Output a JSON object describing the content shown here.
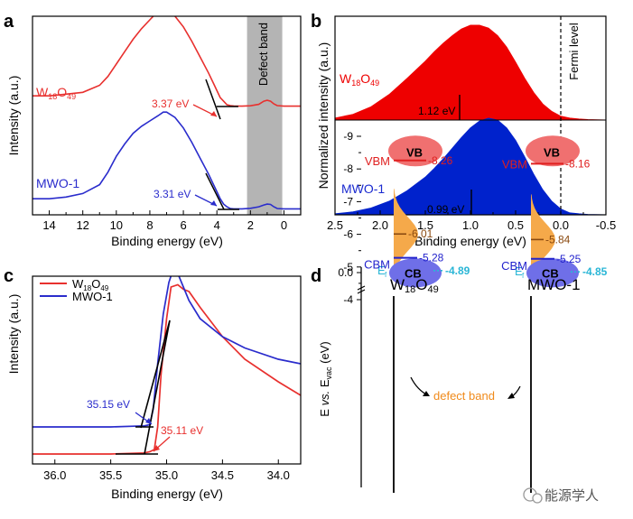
{
  "panels": {
    "a": {
      "letter": "a",
      "xlabel": "Binding energy (eV)",
      "ylabel": "Intensity (a.u.)",
      "xlim": [
        15,
        -1
      ],
      "xticks": [
        "14",
        "12",
        "10",
        "8",
        "6",
        "4",
        "2",
        "0"
      ],
      "defect_label": "Defect band",
      "defect_range": [
        2.2,
        0.1
      ],
      "series": [
        {
          "name": "W18O49",
          "label_main": "W",
          "label_sub1": "18",
          "label_mid": "O",
          "label_sub2": "49",
          "color": "#e8302e",
          "onset_label": "3.37 eV",
          "x": [
            15.0,
            14.0,
            13.0,
            12.0,
            11.0,
            10.5,
            10.0,
            9.5,
            9.0,
            8.5,
            8.0,
            7.5,
            7.2,
            7.0,
            6.5,
            6.0,
            5.5,
            5.0,
            4.5,
            4.2,
            4.0,
            3.8,
            3.6,
            3.4,
            3.2,
            3.0,
            2.5,
            2.0,
            1.5,
            1.2,
            1.0,
            0.8,
            0.6,
            0.4,
            0.0,
            -0.5,
            -1.0
          ],
          "y": [
            0.06,
            0.06,
            0.07,
            0.08,
            0.12,
            0.17,
            0.24,
            0.31,
            0.38,
            0.44,
            0.49,
            0.54,
            0.56,
            0.55,
            0.51,
            0.45,
            0.37,
            0.28,
            0.19,
            0.13,
            0.09,
            0.05,
            0.03,
            0.01,
            0.005,
            0.003,
            0.002,
            0.004,
            0.012,
            0.03,
            0.035,
            0.03,
            0.015,
            0.005,
            0.002,
            0.002,
            0.002
          ]
        },
        {
          "name": "MWO-1",
          "label_main": "MWO-1",
          "color": "#2a2ccc",
          "onset_label": "3.31 eV",
          "x": [
            15.0,
            14.0,
            13.0,
            12.0,
            11.0,
            10.5,
            10.0,
            9.5,
            9.0,
            8.5,
            8.0,
            7.5,
            7.2,
            7.0,
            6.5,
            6.0,
            5.5,
            5.0,
            4.5,
            4.2,
            4.0,
            3.8,
            3.6,
            3.4,
            3.2,
            3.0,
            2.5,
            2.0,
            1.5,
            1.2,
            1.0,
            0.8,
            0.6,
            0.4,
            0.0,
            -0.5,
            -1.0
          ],
          "y": [
            0.06,
            0.06,
            0.07,
            0.09,
            0.14,
            0.21,
            0.3,
            0.37,
            0.43,
            0.47,
            0.5,
            0.53,
            0.55,
            0.55,
            0.52,
            0.46,
            0.38,
            0.29,
            0.2,
            0.14,
            0.1,
            0.06,
            0.03,
            0.015,
            0.005,
            0.003,
            0.003,
            0.006,
            0.015,
            0.025,
            0.03,
            0.028,
            0.015,
            0.005,
            0.003,
            0.003,
            0.003
          ]
        }
      ]
    },
    "b": {
      "letter": "b",
      "xlabel": "Binding energy (eV)",
      "ylabel": "Normalized intensity (a.u.)",
      "xlim": [
        2.5,
        -0.5
      ],
      "xticks": [
        "2.5",
        "2.0",
        "1.5",
        "1.0",
        "0.5",
        "0.0",
        "-0.5"
      ],
      "fermi_label": "Fermi level",
      "series": [
        {
          "name": "W18O49",
          "label_main": "W",
          "label_sub1": "18",
          "label_mid": "O",
          "label_sub2": "49",
          "color": "#ee0000",
          "peak_label": "1.12 eV",
          "peak_x": 1.12,
          "x": [
            2.5,
            2.3,
            2.1,
            1.9,
            1.7,
            1.5,
            1.4,
            1.3,
            1.2,
            1.1,
            1.0,
            0.9,
            0.8,
            0.7,
            0.6,
            0.5,
            0.4,
            0.3,
            0.2,
            0.1,
            0.0,
            -0.1,
            -0.2,
            -0.3,
            -0.5
          ],
          "y": [
            0.02,
            0.06,
            0.14,
            0.27,
            0.44,
            0.62,
            0.72,
            0.81,
            0.89,
            0.96,
            1.0,
            1.0,
            0.97,
            0.89,
            0.77,
            0.61,
            0.44,
            0.29,
            0.17,
            0.09,
            0.04,
            0.02,
            0.01,
            0.005,
            0.0
          ]
        },
        {
          "name": "MWO-1",
          "label_main": "MWO-1",
          "color": "#0022cc",
          "peak_label": "0.99 eV",
          "peak_x": 0.99,
          "x": [
            2.5,
            2.3,
            2.1,
            1.9,
            1.7,
            1.5,
            1.4,
            1.3,
            1.2,
            1.1,
            1.0,
            0.9,
            0.8,
            0.7,
            0.6,
            0.5,
            0.4,
            0.3,
            0.2,
            0.1,
            0.0,
            -0.1,
            -0.2,
            -0.3,
            -0.5
          ],
          "y": [
            0.01,
            0.03,
            0.07,
            0.14,
            0.25,
            0.39,
            0.48,
            0.58,
            0.69,
            0.8,
            0.9,
            0.97,
            1.0,
            0.98,
            0.9,
            0.77,
            0.6,
            0.42,
            0.26,
            0.14,
            0.06,
            0.02,
            0.01,
            0.004,
            0.0
          ]
        }
      ]
    },
    "c": {
      "letter": "c",
      "xlabel": "Binding energy (eV)",
      "ylabel": "Intensity (a.u.)",
      "xlim": [
        36.2,
        33.8
      ],
      "xticks": [
        "36.0",
        "35.5",
        "35.0",
        "34.5",
        "34.0"
      ],
      "legend": [
        {
          "label_main": "W",
          "label_sub1": "18",
          "label_mid": "O",
          "label_sub2": "49",
          "color": "#e8302e"
        },
        {
          "label_main": "MWO-1",
          "color": "#2a2ccc"
        }
      ],
      "series": [
        {
          "name": "W18O49",
          "color": "#e8302e",
          "onset_label": "35.11 eV",
          "x": [
            36.2,
            35.5,
            35.2,
            35.15,
            35.11,
            35.08,
            35.05,
            35.0,
            34.96,
            34.9,
            34.85,
            34.8,
            34.7,
            34.5,
            34.3,
            34.0,
            33.8
          ],
          "y": [
            0.0,
            0.0,
            0.005,
            0.01,
            0.02,
            0.12,
            0.35,
            0.6,
            0.74,
            0.75,
            0.73,
            0.72,
            0.65,
            0.52,
            0.42,
            0.32,
            0.26
          ]
        },
        {
          "name": "MWO-1",
          "color": "#2a2ccc",
          "onset_label": "35.15 eV",
          "x": [
            36.2,
            35.5,
            35.2,
            35.15,
            35.12,
            35.08,
            35.03,
            34.98,
            34.94,
            34.9,
            34.85,
            34.8,
            34.7,
            34.5,
            34.3,
            34.0,
            33.8
          ],
          "y": [
            0.12,
            0.12,
            0.125,
            0.13,
            0.2,
            0.4,
            0.62,
            0.76,
            0.82,
            0.8,
            0.74,
            0.68,
            0.6,
            0.52,
            0.47,
            0.42,
            0.4
          ]
        }
      ]
    },
    "d": {
      "letter": "d",
      "ylabel_pre": "E ",
      "ylabel_vs": "vs.",
      "ylabel_post": " E",
      "ylabel_sub": "vac",
      "ylabel_unit": " (eV)",
      "yticks": [
        "0.0",
        "-4",
        "-5",
        "-6",
        "-7",
        "-8",
        "-9"
      ],
      "defect_label": "defect band",
      "columns": [
        {
          "title_main": "W",
          "title_sub1": "18",
          "title_mid": "O",
          "title_sub2": "49",
          "ef_label": "E",
          "ef_sub": "f",
          "ef_value": "-4.89",
          "ef": -4.89,
          "cb_label": "CB",
          "cbm_label": "CBM",
          "cbm_value": "-5.28",
          "cbm": -5.28,
          "defect_value": "-6.01",
          "defect": -6.01,
          "vbm_label": "VBM",
          "vbm_value": "-8.26",
          "vbm": -8.26,
          "vb_label": "VB"
        },
        {
          "title_main": "MWO-1",
          "ef_label": "E",
          "ef_sub": "f",
          "ef_value": "-4.85",
          "ef": -4.85,
          "cb_label": "CB",
          "cbm_label": "CBM",
          "cbm_value": "-5.25",
          "cbm": -5.25,
          "defect_value": "-5.84",
          "defect": -5.84,
          "vbm_label": "VBM",
          "vbm_value": "-8.16",
          "vbm": -8.16,
          "vb_label": "VB"
        }
      ],
      "colors": {
        "cb": "#6f6fe8",
        "vb": "#f07070",
        "defect": "#f5a94a",
        "ef": "#2ab6d6",
        "cbm": "#2222cc",
        "vbm": "#e02020",
        "defect_line": "#8b4a10"
      }
    }
  },
  "watermark": "能源学人"
}
